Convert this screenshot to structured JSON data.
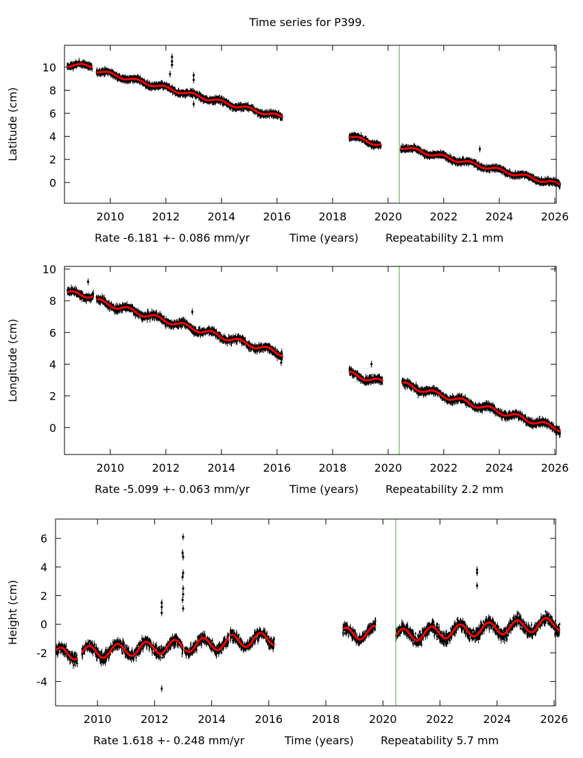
{
  "title": "Time series for P399.",
  "colors": {
    "points": "#000000",
    "fit": "#ff0000",
    "event_line": "#00dd00"
  },
  "chart_data": [
    {
      "type": "scatter",
      "ylabel": "Latitude (cm)",
      "xlabel": "Time (years)",
      "rate_text": "Rate -6.181 +- 0.086 mm/yr",
      "repeat_text": "Repeatability 2.1 mm",
      "xlim": [
        2008.35,
        2026.05
      ],
      "ylim": [
        -1.8,
        11.9
      ],
      "xticks": [
        2010,
        2012,
        2014,
        2016,
        2018,
        2020,
        2022,
        2024,
        2026
      ],
      "yticks": [
        0,
        2,
        4,
        6,
        8,
        10
      ],
      "event_line_x": 2020.4,
      "annual_amplitude": 0.15,
      "annual_phase": 0.3,
      "segments": [
        {
          "start": 2008.45,
          "end": 2009.35,
          "fit_start": 10.2,
          "fit_end": 10.1,
          "noise": 0.18
        },
        {
          "start": 2009.5,
          "end": 2016.2,
          "fit_start": 9.7,
          "fit_end": 5.65,
          "noise": 0.2
        },
        {
          "start": 2018.6,
          "end": 2019.75,
          "fit_start": 4.0,
          "fit_end": 3.25,
          "noise": 0.18
        },
        {
          "start": 2020.45,
          "end": 2026.2,
          "fit_start": 3.1,
          "fit_end": -0.2,
          "noise": 0.18
        }
      ],
      "outliers": [
        [
          2012.22,
          10.9
        ],
        [
          2012.22,
          10.5
        ],
        [
          2012.22,
          10.2
        ],
        [
          2012.15,
          9.4
        ],
        [
          2013.0,
          9.3
        ],
        [
          2013.0,
          8.9
        ],
        [
          2013.0,
          6.8
        ],
        [
          2023.3,
          2.9
        ]
      ]
    },
    {
      "type": "scatter",
      "ylabel": "Longitude (cm)",
      "xlabel": "Time (years)",
      "rate_text": "Rate -5.099 +- 0.063 mm/yr",
      "repeat_text": "Repeatability 2.2 mm",
      "xlim": [
        2008.35,
        2026.05
      ],
      "ylim": [
        -1.7,
        10.17
      ],
      "xticks": [
        2010,
        2012,
        2014,
        2016,
        2018,
        2020,
        2022,
        2024,
        2026
      ],
      "yticks": [
        0,
        2,
        4,
        6,
        8,
        10
      ],
      "event_line_x": 2020.4,
      "annual_amplitude": 0.15,
      "annual_phase": 0.6,
      "segments": [
        {
          "start": 2008.45,
          "end": 2009.4,
          "fit_start": 8.5,
          "fit_end": 8.3,
          "noise": 0.22
        },
        {
          "start": 2009.5,
          "end": 2016.2,
          "fit_start": 8.0,
          "fit_end": 4.65,
          "noise": 0.22
        },
        {
          "start": 2018.6,
          "end": 2019.8,
          "fit_start": 3.4,
          "fit_end": 2.85,
          "noise": 0.2
        },
        {
          "start": 2020.5,
          "end": 2026.2,
          "fit_start": 2.75,
          "fit_end": -0.1,
          "noise": 0.22
        }
      ],
      "outliers": [
        [
          2009.2,
          9.2
        ],
        [
          2012.95,
          7.3
        ],
        [
          2019.4,
          4.0
        ],
        [
          2016.15,
          4.1
        ]
      ]
    },
    {
      "type": "scatter",
      "ylabel": "Height (cm)",
      "xlabel": "Time (years)",
      "rate_text": "Rate 1.618 +- 0.248 mm/yr",
      "repeat_text": "Repeatability 5.7 mm",
      "xlim": [
        2008.53,
        2026.05
      ],
      "ylim": [
        -5.7,
        7.35
      ],
      "xticks": [
        2010,
        2012,
        2014,
        2016,
        2018,
        2020,
        2022,
        2024,
        2026
      ],
      "yticks": [
        -4,
        -2,
        0,
        2,
        4,
        6
      ],
      "event_line_x": 2020.45,
      "annual_amplitude": 0.45,
      "annual_phase": 0.55,
      "segments": [
        {
          "start": 2008.55,
          "end": 2009.3,
          "fit_start": -2.1,
          "fit_end": -2.0,
          "noise": 0.45
        },
        {
          "start": 2009.45,
          "end": 2013.0,
          "fit_start": -2.0,
          "fit_end": -1.5,
          "noise": 0.45
        },
        {
          "start": 2013.05,
          "end": 2014.6,
          "fit_start": -1.5,
          "fit_end": -1.3,
          "noise": 0.45
        },
        {
          "start": 2014.65,
          "end": 2016.2,
          "fit_start": -1.2,
          "fit_end": -1.0,
          "noise": 0.45
        },
        {
          "start": 2018.6,
          "end": 2019.75,
          "fit_start": -0.7,
          "fit_end": -0.55,
          "noise": 0.4
        },
        {
          "start": 2020.45,
          "end": 2026.2,
          "fit_start": -0.8,
          "fit_end": 0.05,
          "noise": 0.5
        }
      ],
      "outliers": [
        [
          2012.25,
          1.5
        ],
        [
          2012.25,
          1.2
        ],
        [
          2012.25,
          0.8
        ],
        [
          2012.25,
          -4.5
        ],
        [
          2013.0,
          6.1
        ],
        [
          2012.98,
          5.0
        ],
        [
          2013.0,
          4.7
        ],
        [
          2013.0,
          3.6
        ],
        [
          2012.98,
          3.3
        ],
        [
          2013.0,
          2.5
        ],
        [
          2013.0,
          2.1
        ],
        [
          2012.98,
          1.7
        ],
        [
          2013.0,
          1.1
        ],
        [
          2023.3,
          3.8
        ],
        [
          2023.3,
          3.6
        ],
        [
          2023.3,
          2.7
        ]
      ]
    }
  ]
}
